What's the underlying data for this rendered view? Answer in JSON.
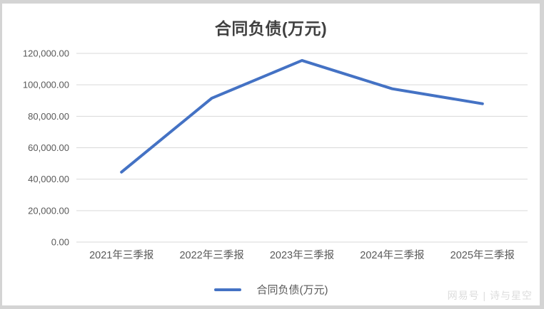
{
  "page": {
    "background_color": "#d4d4d4",
    "watermark": "网易号 | 诗与星空"
  },
  "chart_data": {
    "type": "line",
    "title": "合同负债(万元)",
    "categories": [
      "2021年三季报",
      "2022年三季报",
      "2023年三季报",
      "2024年三季报",
      "2025年三季报"
    ],
    "series": [
      {
        "name": "合同负债(万元)",
        "values": [
          44500,
          91500,
          115500,
          97500,
          88000
        ],
        "color": "#4472c4"
      }
    ],
    "xlabel": "",
    "ylabel": "",
    "ylim": [
      0,
      120000
    ],
    "y_tick_step": 20000,
    "y_tick_labels": [
      "0.00",
      "20,000.00",
      "40,000.00",
      "60,000.00",
      "80,000.00",
      "100,000.00",
      "120,000.00"
    ],
    "grid": true,
    "gridline_color": "#d9d9d9",
    "axis_label_color": "#595959",
    "title_color": "#404040",
    "legend_position": "bottom",
    "legend_label": "合同负债(万元)"
  }
}
